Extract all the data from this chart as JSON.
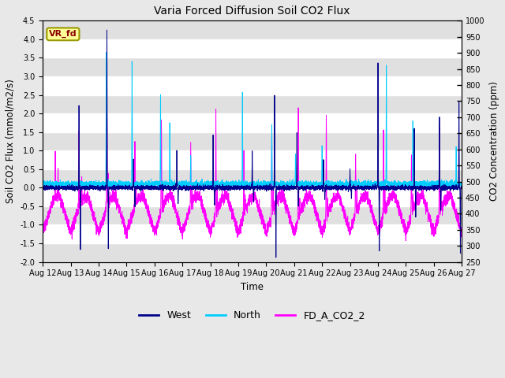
{
  "title": "Varia Forced Diffusion Soil CO2 Flux",
  "xlabel": "Time",
  "ylabel_left": "Soil CO2 Flux (mmol/m2/s)",
  "ylabel_right": "CO2 Concentration (ppm)",
  "ylim_left": [
    -2.0,
    4.5
  ],
  "ylim_right": [
    250,
    1000
  ],
  "xtick_labels": [
    "Aug 12",
    "Aug 13",
    "Aug 14",
    "Aug 15",
    "Aug 16",
    "Aug 17",
    "Aug 18",
    "Aug 19",
    "Aug 20",
    "Aug 21",
    "Aug 22",
    "Aug 23",
    "Aug 24",
    "Aug 25",
    "Aug 26",
    "Aug 27"
  ],
  "color_west": "#00008B",
  "color_north": "#00CCFF",
  "color_co2": "#FF00FF",
  "color_label_box_bg": "#FFFF99",
  "color_label_box_edge": "#999900",
  "label_text": "VR_fd",
  "label_text_color": "#8B0000",
  "background_color": "#E8E8E8",
  "plot_bg_color": "#FFFFFF",
  "legend_labels": [
    "West",
    "North",
    "FD_A_CO2_2"
  ],
  "n_points": 5000,
  "seed": 7,
  "right_ticks": [
    250,
    300,
    350,
    400,
    450,
    500,
    550,
    600,
    650,
    700,
    750,
    800,
    850,
    900,
    950,
    1000
  ],
  "ytick_left": [
    -2.0,
    -1.5,
    -1.0,
    -0.5,
    0.0,
    0.5,
    1.0,
    1.5,
    2.0,
    2.5,
    3.0,
    3.5,
    4.0,
    4.5
  ],
  "figsize": [
    6.4,
    4.8
  ],
  "dpi": 100
}
